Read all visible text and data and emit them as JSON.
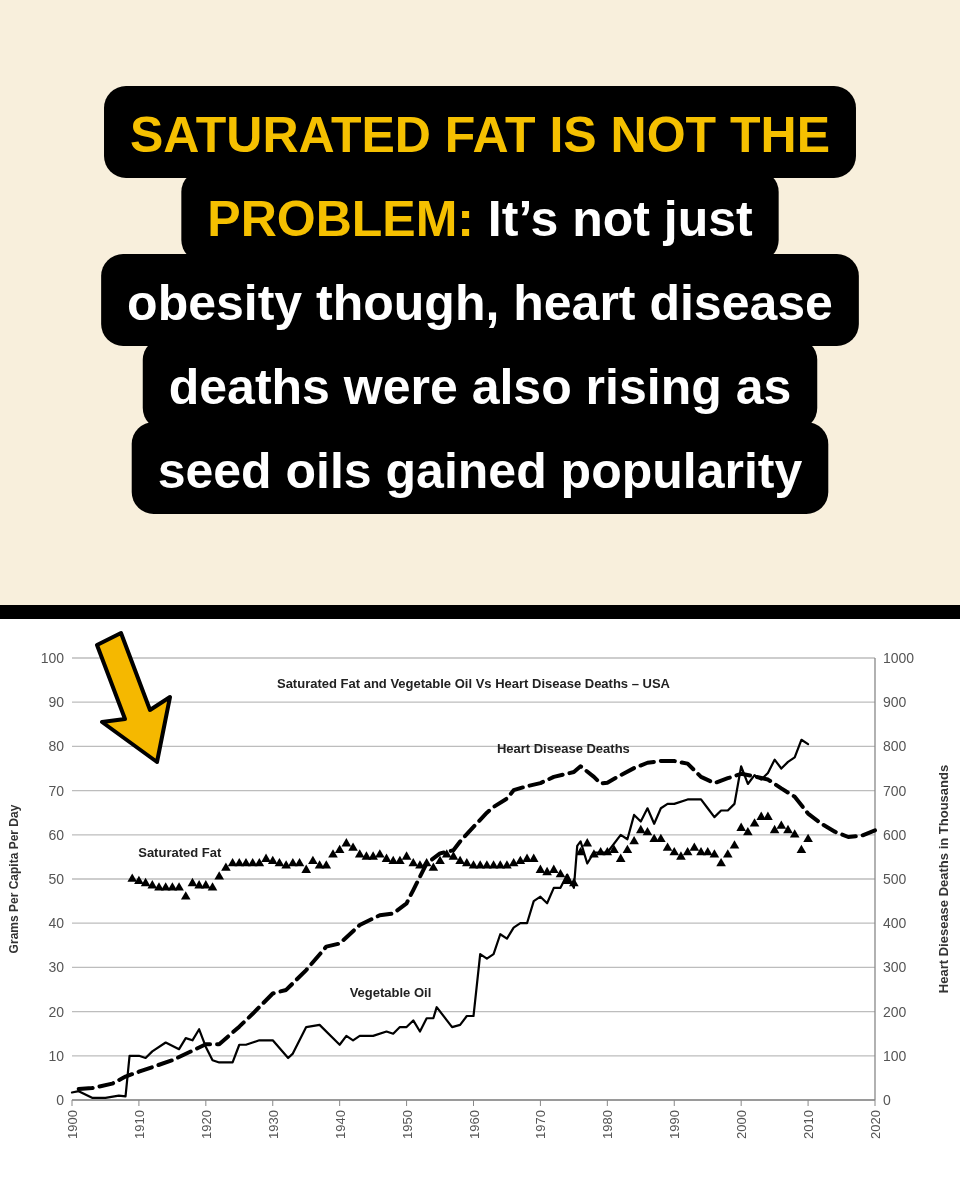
{
  "chart_data": {
    "type": "line",
    "title": "SATURATED FAT IS NOT THE PROBLEM:",
    "subtitle": "It’s not just obesity though, heart disease deaths were also rising as seed oils gained popularity",
    "annotations": [
      "Saturated Fat and Vegetable Oil Vs Heart Disease Deaths – USA"
    ],
    "ylabel": "Grams Per Capita Per Day",
    "y2label": "Heart Diesease Deaths in Thousands",
    "xlim": [
      1900,
      2020
    ],
    "xticks": [
      1900,
      1910,
      1920,
      1930,
      1940,
      1950,
      1960,
      1970,
      1980,
      1990,
      2000,
      2010,
      2020
    ],
    "ylim": [
      0,
      100
    ],
    "yticks": [
      0,
      10,
      20,
      30,
      40,
      50,
      60,
      70,
      80,
      90,
      100
    ],
    "y2lim": [
      0,
      1000
    ],
    "y2ticks": [
      0,
      100,
      200,
      300,
      400,
      500,
      600,
      700,
      800,
      900,
      1000
    ],
    "grid": "y",
    "legend": false,
    "series": [
      {
        "name": "Saturated Fat",
        "type": "scatter",
        "marker": "triangle",
        "color": "#000000",
        "x": [
          1909,
          1910,
          1911,
          1912,
          1913,
          1914,
          1915,
          1916,
          1917,
          1918,
          1919,
          1920,
          1921,
          1922,
          1923,
          1924,
          1925,
          1926,
          1927,
          1928,
          1929,
          1930,
          1931,
          1932,
          1933,
          1934,
          1935,
          1936,
          1937,
          1938,
          1939,
          1940,
          1941,
          1942,
          1943,
          1944,
          1945,
          1946,
          1947,
          1948,
          1949,
          1950,
          1951,
          1952,
          1953,
          1954,
          1955,
          1956,
          1957,
          1958,
          1959,
          1960,
          1961,
          1962,
          1963,
          1964,
          1965,
          1966,
          1967,
          1968,
          1969,
          1970,
          1971,
          1972,
          1973,
          1974,
          1975,
          1976,
          1977,
          1978,
          1979,
          1980,
          1981,
          1982,
          1983,
          1984,
          1985,
          1986,
          1987,
          1988,
          1989,
          1990,
          1991,
          1992,
          1993,
          1994,
          1995,
          1996,
          1997,
          1998,
          1999,
          2000,
          2001,
          2002,
          2003,
          2004,
          2005,
          2006,
          2007,
          2008,
          2009,
          2010
        ],
        "values": [
          50,
          49.5,
          49,
          48.5,
          48,
          48,
          48,
          48,
          46,
          49,
          48.5,
          48.5,
          48,
          50.5,
          52.5,
          53.5,
          53.5,
          53.5,
          53.5,
          53.5,
          54.5,
          54,
          53.5,
          53,
          53.5,
          53.5,
          52,
          54,
          53,
          53,
          55.5,
          56.5,
          58,
          57,
          55.5,
          55,
          55,
          55.5,
          54.5,
          54,
          54,
          55,
          53.5,
          53,
          53.5,
          52.5,
          54,
          55.5,
          55,
          54,
          53.5,
          53,
          53,
          53,
          53,
          53,
          53,
          53.5,
          54,
          54.5,
          54.5,
          52,
          51.5,
          52,
          51,
          49.5,
          49,
          56,
          58,
          55.5,
          56,
          56,
          56.5,
          54.5,
          56.5,
          58.5,
          61,
          60.5,
          59,
          59,
          57,
          56,
          55,
          56,
          57,
          56,
          56,
          55.5,
          53.5,
          55.5,
          57.5,
          61.5,
          60.5,
          62.5,
          64,
          64,
          61,
          62,
          61,
          60,
          56.5,
          59
        ]
      },
      {
        "name": "Vegetable Oil",
        "type": "line",
        "line_style": "solid",
        "color": "#000000",
        "x": [
          1900,
          1901,
          1903,
          1905,
          1907,
          1908,
          1908.6,
          1910,
          1911,
          1912,
          1914,
          1916,
          1917,
          1918,
          1919,
          1920,
          1921,
          1922,
          1924,
          1925,
          1926,
          1928,
          1930,
          1932.3,
          1933,
          1935,
          1937,
          1940,
          1941,
          1942,
          1943,
          1945,
          1947,
          1948,
          1949,
          1950,
          1951,
          1952,
          1953,
          1954,
          1954.5,
          1956.8,
          1958,
          1959,
          1960,
          1961,
          1962,
          1963,
          1964,
          1965,
          1966,
          1967,
          1968,
          1969,
          1970,
          1971,
          1972,
          1973,
          1974,
          1975,
          1975.5,
          1976,
          1977,
          1978,
          1980,
          1982,
          1983,
          1984,
          1985,
          1986,
          1987,
          1988,
          1989,
          1990,
          1992,
          1994,
          1995,
          1996,
          1997,
          1998,
          1999,
          2000,
          2001,
          2002,
          2003,
          2004,
          2005,
          2006,
          2007,
          2008,
          2009,
          2010
        ],
        "values": [
          1.7,
          2,
          0.5,
          0.5,
          1,
          0.8,
          10,
          10,
          9.5,
          11,
          13,
          11.5,
          14,
          13.5,
          16,
          12,
          9,
          8.5,
          8.5,
          12.5,
          12.5,
          13.5,
          13.5,
          9.5,
          10.5,
          16.5,
          17,
          12.5,
          14.5,
          13.5,
          14.5,
          14.5,
          15.5,
          15,
          16.5,
          16.5,
          18,
          15.5,
          18.5,
          18.5,
          21,
          16.5,
          17,
          19,
          19,
          33,
          32,
          33,
          37.5,
          36.5,
          39,
          40,
          40,
          45,
          46,
          44.5,
          48,
          48,
          51,
          48,
          57.5,
          58.5,
          53.5,
          56,
          56,
          60,
          59,
          64.5,
          63,
          66,
          62.5,
          66,
          67,
          67,
          68,
          68,
          66,
          64,
          65.5,
          65.5,
          67,
          75.5,
          71.5,
          73.5,
          72.5,
          74,
          77,
          75,
          76.5,
          77.5,
          81.5,
          80.5
        ]
      },
      {
        "name": "Heart Disease Deaths",
        "type": "line",
        "line_style": "dashed",
        "axis": "y2",
        "color": "#000000",
        "x": [
          1901,
          1903,
          1906,
          1908,
          1910,
          1915,
          1920,
          1922,
          1925,
          1927,
          1930,
          1932,
          1935,
          1938,
          1940,
          1943,
          1946,
          1948,
          1950,
          1951,
          1952,
          1953,
          1955,
          1957,
          1958,
          1960,
          1962,
          1963,
          1965,
          1966,
          1968,
          1970,
          1972,
          1975,
          1976,
          1978,
          1979,
          1980,
          1982,
          1984,
          1986,
          1988,
          1990,
          1992,
          1994,
          1996,
          1998,
          2000,
          2002,
          2004,
          2006,
          2008,
          2010,
          2012,
          2014,
          2016,
          2018,
          2020
        ],
        "values": [
          25,
          27,
          37,
          53,
          64,
          90,
          126,
          126,
          166,
          195,
          241,
          249,
          294,
          347,
          354,
          396,
          418,
          422,
          445,
          475,
          505,
          535,
          558,
          565,
          585,
          618,
          650,
          663,
          682,
          701,
          710,
          717,
          731,
          742,
          755,
          731,
          716,
          718,
          735,
          751,
          763,
          767,
          767,
          761,
          731,
          717,
          728,
          738,
          732,
          725,
          705,
          686,
          648,
          625,
          607,
          595,
          598,
          610
        ]
      }
    ]
  }
}
